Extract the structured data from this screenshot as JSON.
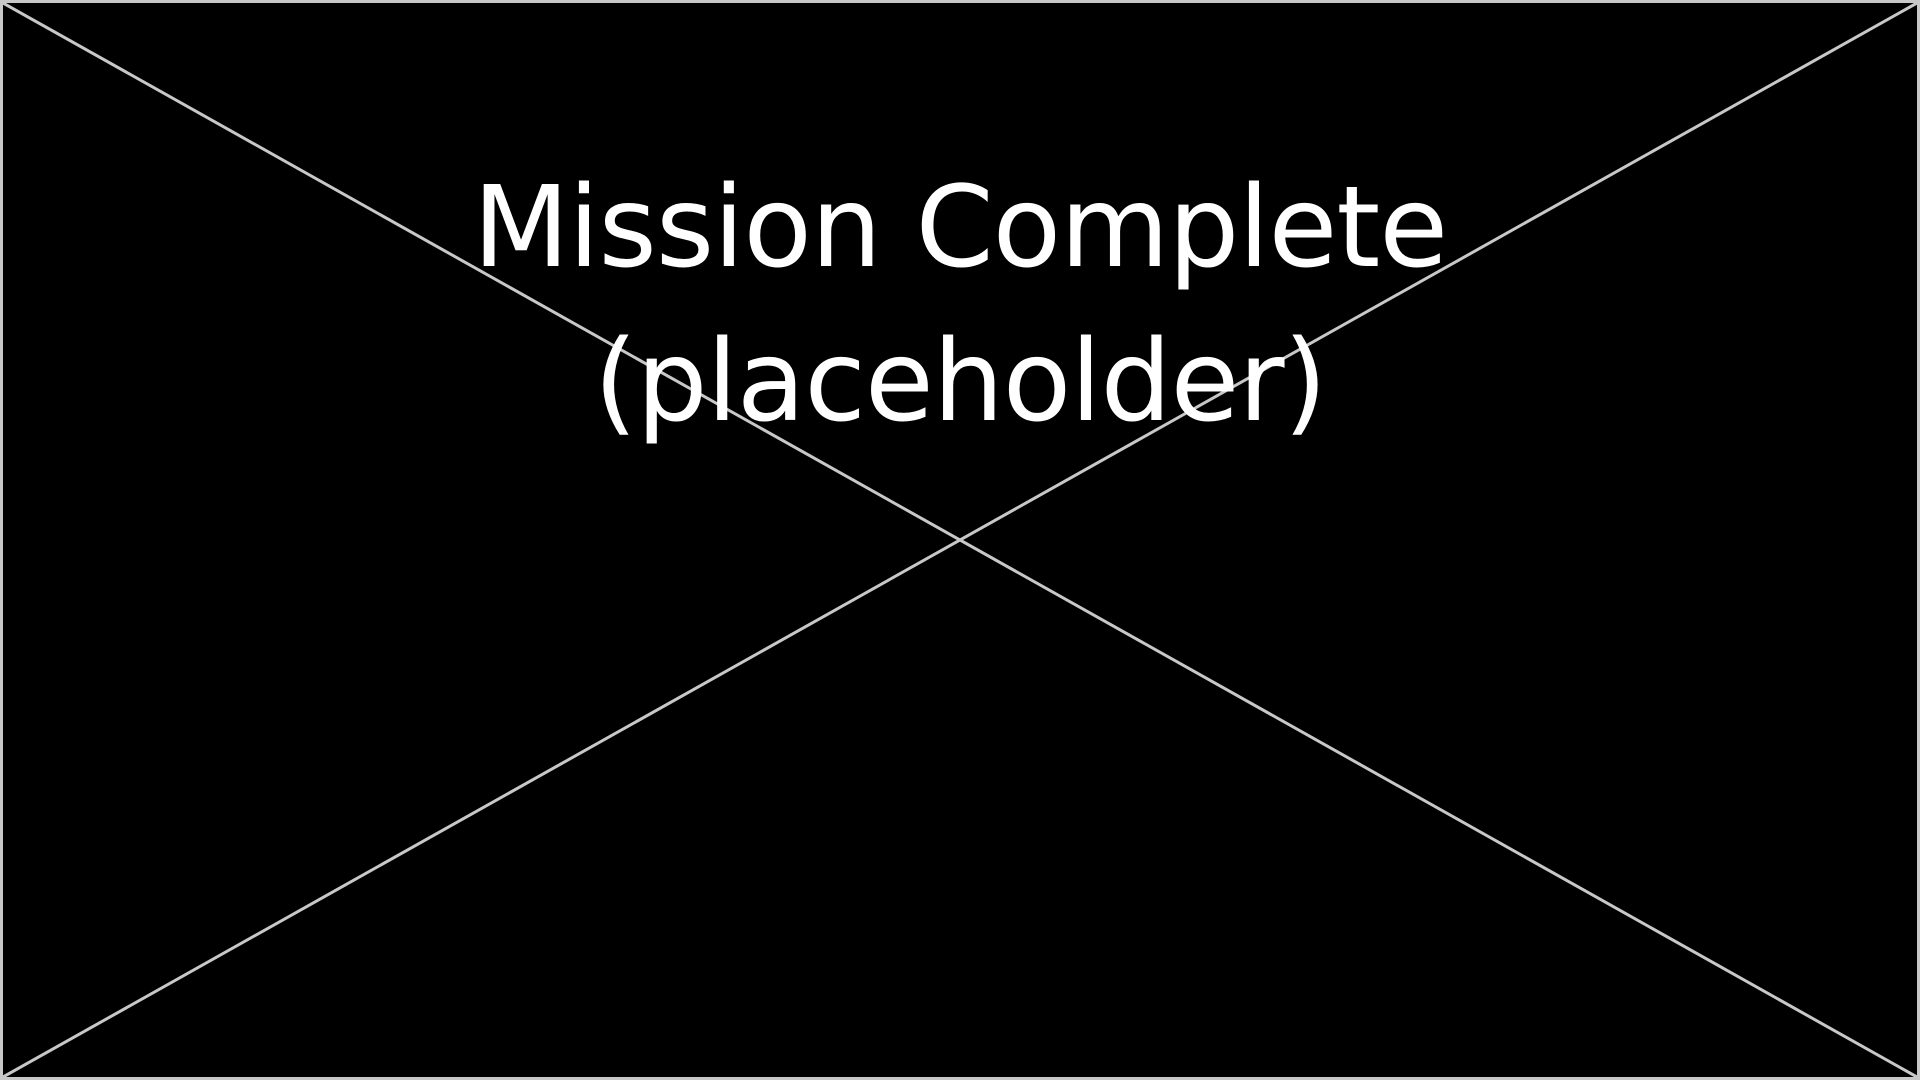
{
  "screen": {
    "title_line1": "Mission Complete",
    "title_line2": "(placeholder)",
    "background_color": "#000000",
    "line_color": "#c8c8c8",
    "text_color": "#ffffff"
  }
}
